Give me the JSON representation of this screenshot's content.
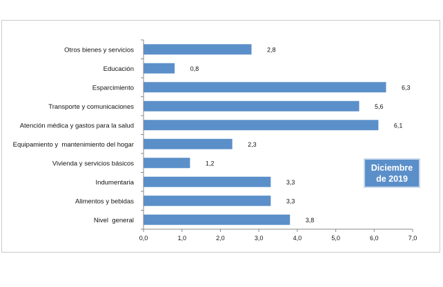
{
  "chart_data": {
    "type": "bar",
    "orientation": "horizontal",
    "categories": [
      "Otros bienes y servicios",
      "Educación",
      "Esparcimiento",
      "Transporte y comunicaciones",
      "Atención médica y gastos para la salud",
      "Equipamiento y  mantenimiento del hogar",
      "Vivienda y servicios básicos",
      "Indumentaria",
      "Alimentos y bebidas",
      "Nivel  general"
    ],
    "values": [
      2.8,
      0.8,
      6.3,
      5.6,
      6.1,
      2.3,
      1.2,
      3.3,
      3.3,
      3.8
    ],
    "value_labels": [
      "2,8",
      "0,8",
      "6,3",
      "5,6",
      "6,1",
      "2,3",
      "1,2",
      "3,3",
      "3,3",
      "3,8"
    ],
    "xlim": [
      0,
      7
    ],
    "x_ticks": [
      0,
      1,
      2,
      3,
      4,
      5,
      6,
      7
    ],
    "x_tick_labels": [
      "0,0",
      "1,0",
      "2,0",
      "3,0",
      "4,0",
      "5,0",
      "6,0",
      "7,0"
    ],
    "bar_color": "#5b8fc9",
    "grid": false,
    "annotation": {
      "line1": "Diciembre",
      "line2": "de 2019",
      "color": "#5b8fc9"
    }
  }
}
